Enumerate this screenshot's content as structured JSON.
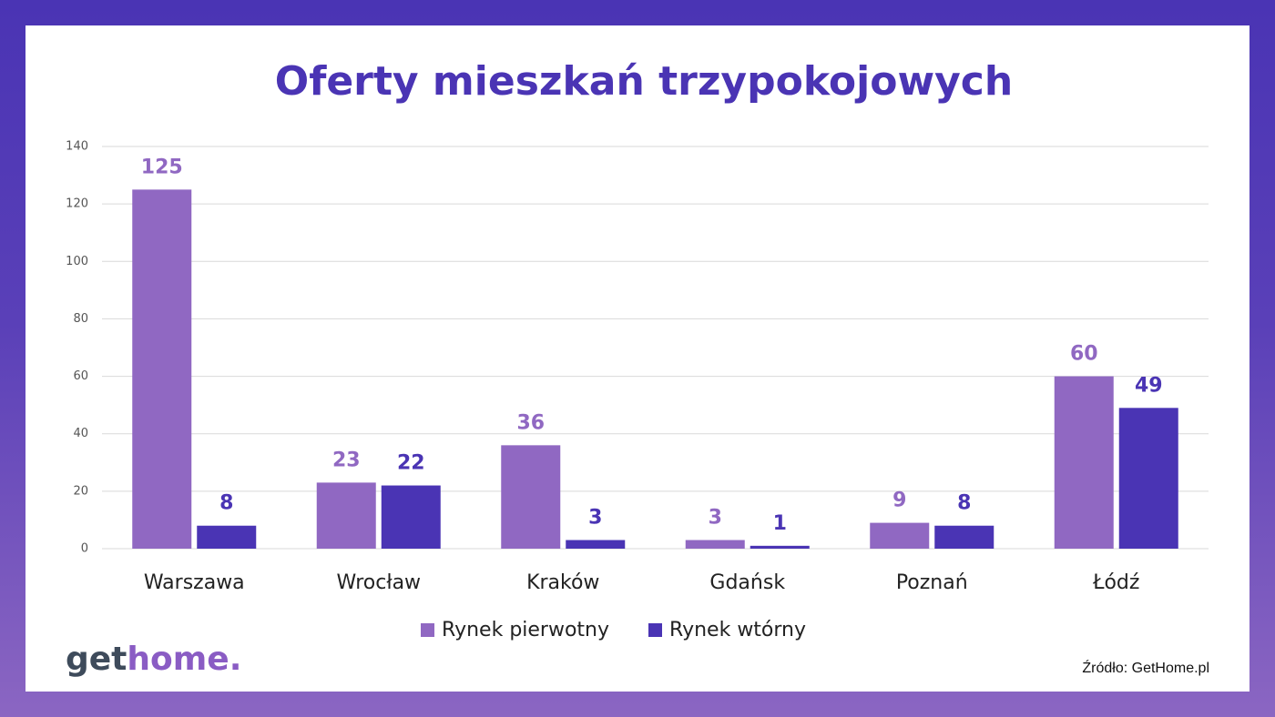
{
  "chart_data": {
    "type": "bar",
    "title": "Oferty mieszkań trzypokojowych",
    "categories": [
      "Warszawa",
      "Wrocław",
      "Kraków",
      "Gdańsk",
      "Poznań",
      "Łódź"
    ],
    "series": [
      {
        "name": "Rynek pierwotny",
        "color": "#9068c2",
        "values": [
          125,
          23,
          36,
          3,
          9,
          60
        ]
      },
      {
        "name": "Rynek wtórny",
        "color": "#4a34b4",
        "values": [
          8,
          22,
          3,
          1,
          8,
          49
        ]
      }
    ],
    "ylim": [
      0,
      140
    ],
    "yticks": [
      0,
      20,
      40,
      60,
      80,
      100,
      120,
      140
    ],
    "grid": true,
    "legend": "bottom"
  },
  "logo": {
    "first": "get",
    "second": "home."
  },
  "source": "Źródło: GetHome.pl"
}
